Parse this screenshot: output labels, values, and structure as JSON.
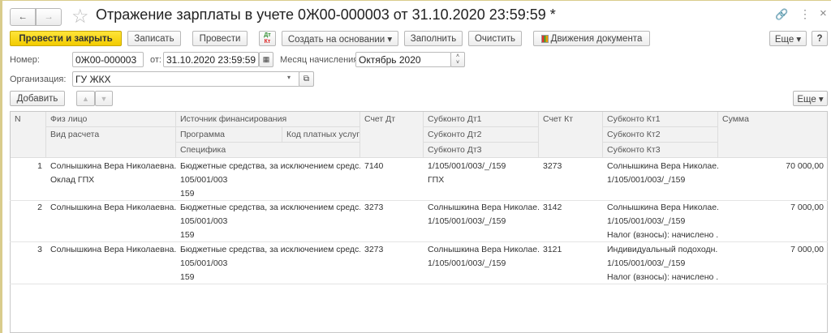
{
  "title": "Отражение зарплаты в учете 0Ж00-000003 от 31.10.2020 23:59:59 *",
  "nav": {
    "back": "←",
    "forward": "→",
    "star": "☆"
  },
  "window": {
    "link": "🔗",
    "more": "⋮",
    "close": "×"
  },
  "toolbar": {
    "post_close": "Провести и закрыть",
    "save": "Записать",
    "post": "Провести",
    "dtkt_dt": "Дт",
    "dtkt_kt": "Кт",
    "create_based": "Создать на основании ▾",
    "fill": "Заполнить",
    "clear": "Очистить",
    "movements": "Движения документа",
    "more": "Еще ▾",
    "help": "?"
  },
  "form": {
    "number_label": "Номер:",
    "number": "0Ж00-000003",
    "from_label": "от:",
    "date": "31.10.2020 23:59:59",
    "month_label": "Месяц начисления:",
    "month": "Октябрь 2020",
    "org_label": "Организация:",
    "org": "ГУ ЖКХ"
  },
  "table_toolbar": {
    "add": "Добавить",
    "up": "▲",
    "down": "▼",
    "more": "Еще ▾"
  },
  "headers": {
    "n": "N",
    "person": "Физ лицо",
    "calc": "Вид расчета",
    "source": "Источник финансирования",
    "program": "Программа",
    "paid_code": "Код платных услуг",
    "specific": "Специфика",
    "acc_dt": "Счет Дт",
    "sub_dt1": "Субконто Дт1",
    "sub_dt2": "Субконто Дт2",
    "sub_dt3": "Субконто Дт3",
    "acc_kt": "Счет Кт",
    "sub_kt1": "Субконто Кт1",
    "sub_kt2": "Субконто Кт2",
    "sub_kt3": "Субконто Кт3",
    "sum": "Сумма"
  },
  "rows": [
    {
      "n": "1",
      "person": "Солнышкина Вера Николаевна.",
      "calc": "Оклад ГПХ",
      "source": "Бюджетные средства, за исключением средс...",
      "program": "105/001/003",
      "specific": "159",
      "acc_dt": "7140",
      "sub_dt1": "1/105/001/003/_/159",
      "sub_dt2": "ГПХ",
      "sub_dt3": "",
      "acc_kt": "3273",
      "sub_kt1": "Солнышкина Вера Николае...",
      "sub_kt2": "1/105/001/003/_/159",
      "sub_kt3": "",
      "sum": "70 000,00"
    },
    {
      "n": "2",
      "person": "Солнышкина Вера Николаевна.",
      "calc": "",
      "source": "Бюджетные средства, за исключением средс...",
      "program": "105/001/003",
      "specific": "159",
      "acc_dt": "3273",
      "sub_dt1": "Солнышкина Вера Николае...",
      "sub_dt2": "1/105/001/003/_/159",
      "sub_dt3": "",
      "acc_kt": "3142",
      "sub_kt1": "Солнышкина Вера Николае...",
      "sub_kt2": "1/105/001/003/_/159",
      "sub_kt3": "Налог (взносы): начислено ...",
      "sum": "7 000,00"
    },
    {
      "n": "3",
      "person": "Солнышкина Вера Николаевна.",
      "calc": "",
      "source": "Бюджетные средства, за исключением средс...",
      "program": "105/001/003",
      "specific": "159",
      "acc_dt": "3273",
      "sub_dt1": "Солнышкина Вера Николае...",
      "sub_dt2": "1/105/001/003/_/159",
      "sub_dt3": "",
      "acc_kt": "3121",
      "sub_kt1": "Индивидуальный подоходн...",
      "sub_kt2": "1/105/001/003/_/159",
      "sub_kt3": "Налог (взносы): начислено ...",
      "sum": "7 000,00"
    }
  ]
}
